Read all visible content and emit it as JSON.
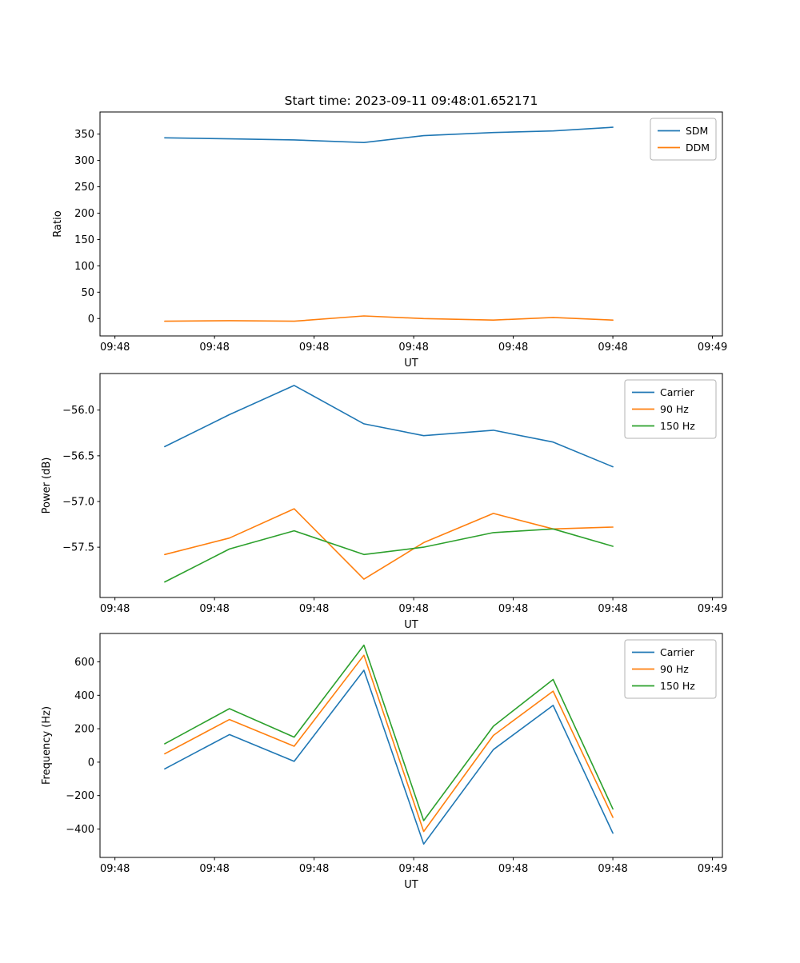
{
  "figure": {
    "title": "Start time: 2023-09-11 09:48:01.652171",
    "background": "#ffffff"
  },
  "x_axis": {
    "label": "UT",
    "range": [
      -1.5,
      61
    ],
    "tick_values": [
      0,
      10,
      20,
      30,
      40,
      50,
      60
    ],
    "tick_labels": [
      "09:48",
      "09:48",
      "09:48",
      "09:48",
      "09:48",
      "09:48",
      "09:49"
    ]
  },
  "chart_data": [
    {
      "type": "line",
      "id": "ratio",
      "ylabel": "Ratio",
      "xlabel": "UT",
      "ylim": [
        -33,
        392
      ],
      "ytick_values": [
        0,
        50,
        100,
        150,
        200,
        250,
        300,
        350
      ],
      "ytick_labels": [
        "0",
        "50",
        "100",
        "150",
        "200",
        "250",
        "300",
        "350"
      ],
      "x": [
        5,
        11.5,
        18,
        25,
        31,
        38,
        44,
        50
      ],
      "series": [
        {
          "name": "SDM",
          "color": "#1f77b4",
          "values": [
            343,
            341,
            339,
            334,
            347,
            353,
            356,
            363
          ]
        },
        {
          "name": "DDM",
          "color": "#ff7f0e",
          "values": [
            -5,
            -4,
            -5,
            5,
            0,
            -3,
            2,
            -3
          ]
        }
      ],
      "legend": {
        "position": "upper right",
        "entries": [
          "SDM",
          "DDM"
        ]
      }
    },
    {
      "type": "line",
      "id": "power",
      "ylabel": "Power (dB)",
      "xlabel": "UT",
      "ylim": [
        -58.05,
        -55.6
      ],
      "ytick_values": [
        -57.5,
        -57.0,
        -56.5,
        -56.0
      ],
      "ytick_labels": [
        "−57.5",
        "−57.0",
        "−56.5",
        "−56.0"
      ],
      "x": [
        5,
        11.5,
        18,
        25,
        31,
        38,
        44,
        50
      ],
      "series": [
        {
          "name": "Carrier",
          "color": "#1f77b4",
          "values": [
            -56.4,
            -56.05,
            -55.73,
            -56.15,
            -56.28,
            -56.22,
            -56.35,
            -56.62
          ]
        },
        {
          "name": "90 Hz",
          "color": "#ff7f0e",
          "values": [
            -57.58,
            -57.4,
            -57.08,
            -57.85,
            -57.45,
            -57.13,
            -57.3,
            -57.28
          ]
        },
        {
          "name": "150 Hz",
          "color": "#2ca02c",
          "values": [
            -57.88,
            -57.52,
            -57.32,
            -57.58,
            -57.5,
            -57.34,
            -57.3,
            -57.49
          ]
        }
      ],
      "legend": {
        "position": "upper right",
        "entries": [
          "Carrier",
          "90 Hz",
          "150 Hz"
        ]
      }
    },
    {
      "type": "line",
      "id": "frequency",
      "ylabel": "Frequency (Hz)",
      "xlabel": "UT",
      "ylim": [
        -570,
        770
      ],
      "ytick_values": [
        -400,
        -200,
        0,
        200,
        400,
        600
      ],
      "ytick_labels": [
        "−400",
        "−200",
        "0",
        "200",
        "400",
        "600"
      ],
      "x": [
        5,
        11.5,
        18,
        25,
        31,
        38,
        44,
        50
      ],
      "series": [
        {
          "name": "Carrier",
          "color": "#1f77b4",
          "values": [
            -40,
            165,
            5,
            550,
            -490,
            75,
            340,
            -425
          ]
        },
        {
          "name": "90 Hz",
          "color": "#ff7f0e",
          "values": [
            50,
            255,
            95,
            640,
            -415,
            160,
            425,
            -330
          ]
        },
        {
          "name": "150 Hz",
          "color": "#2ca02c",
          "values": [
            110,
            320,
            150,
            700,
            -350,
            215,
            495,
            -280
          ]
        }
      ],
      "legend": {
        "position": "upper right",
        "entries": [
          "Carrier",
          "90 Hz",
          "150 Hz"
        ]
      }
    }
  ]
}
